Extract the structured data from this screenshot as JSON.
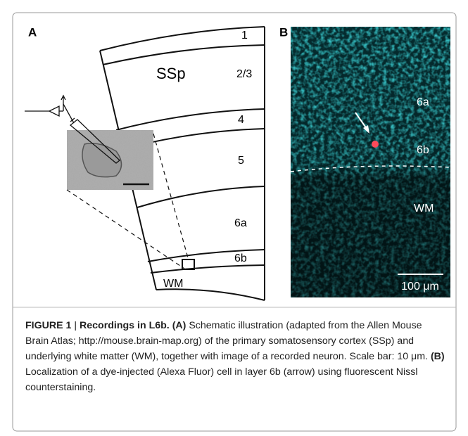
{
  "panel_a": {
    "letter": "A",
    "layers": [
      "1",
      "2/3",
      "4",
      "5",
      "6a",
      "6b",
      "WM"
    ],
    "region": "SSp"
  },
  "panel_b": {
    "letter": "B",
    "labels": [
      "6a",
      "6b",
      "WM"
    ],
    "scale_bar": "100 μm"
  },
  "caption": {
    "figure": "FIGURE 1",
    "separator": "|",
    "title": "Recordings in L6b.",
    "a_label": "(A)",
    "a_text": "Schematic illustration (adapted from the Allen Mouse Brain Atlas; http://mouse.brain-map.org) of the primary somatosensory cortex (SSp) and underlying white matter (WM), together with image of a recorded neuron. Scale bar: 10 μm.",
    "b_label": "(B)",
    "b_text": "Localization of a dye-injected (Alexa Fluor) cell in layer 6b (arrow) using fluorescent Nissl counterstaining."
  }
}
